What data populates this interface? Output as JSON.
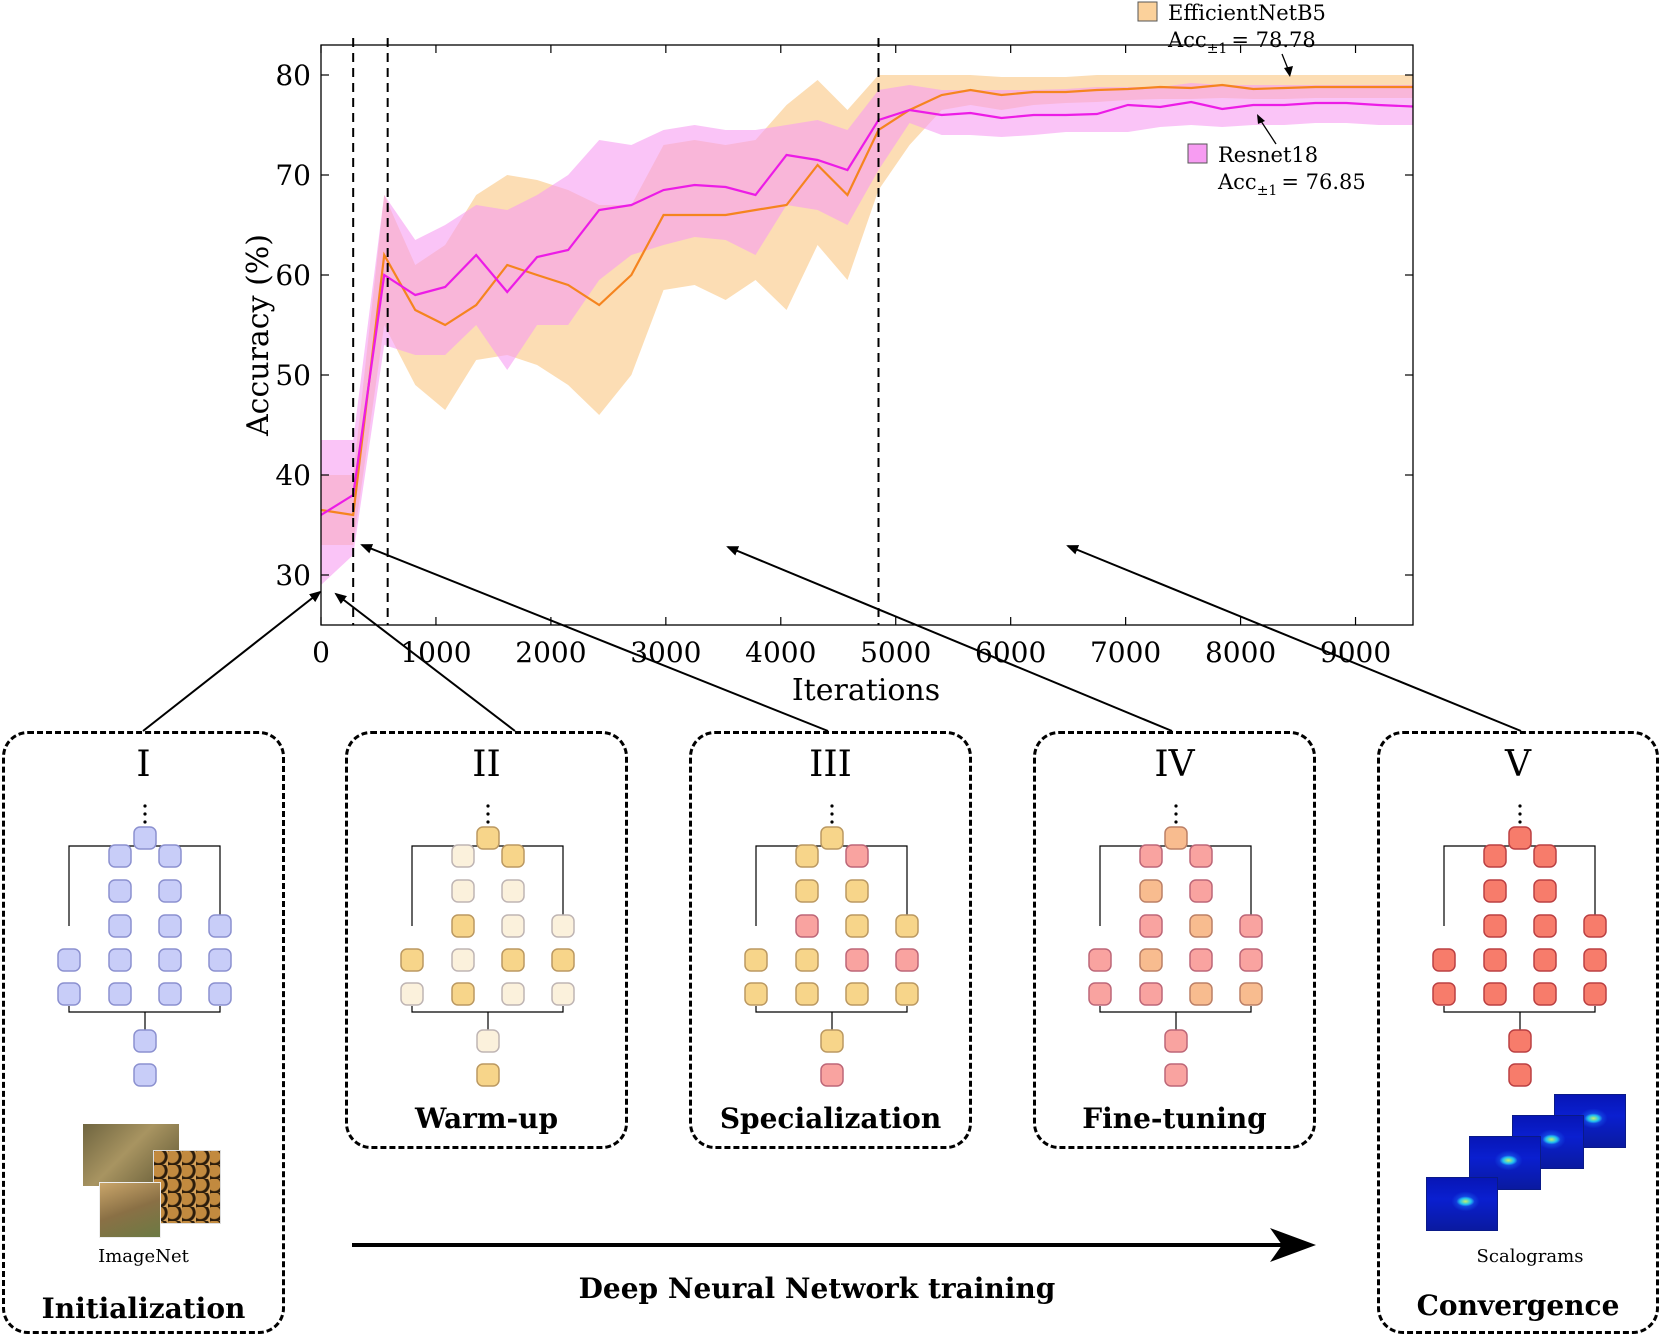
{
  "chart_data": {
    "type": "line",
    "xlabel": "Iterations",
    "ylabel": "Accuracy (%)",
    "xlim": [
      0,
      9500
    ],
    "ylim": [
      25,
      83
    ],
    "xticks": [
      0,
      1000,
      2000,
      3000,
      4000,
      5000,
      6000,
      7000,
      8000,
      9000
    ],
    "yticks": [
      30,
      40,
      50,
      60,
      70,
      80
    ],
    "phase_lines": [
      280,
      580,
      4850
    ],
    "series": [
      {
        "name": "EfficientNetB5",
        "color": "#f5841f",
        "band_color": "#fbd19b",
        "x": [
          0,
          280,
          550,
          820,
          1080,
          1350,
          1620,
          1880,
          2150,
          2420,
          2700,
          2980,
          3250,
          3520,
          3780,
          4050,
          4320,
          4580,
          4850,
          5120,
          5400,
          5650,
          5920,
          6200,
          6480,
          6750,
          7020,
          7300,
          7570,
          7840,
          8110,
          8380,
          8650,
          8920,
          9200,
          9500
        ],
        "mean": [
          36.5,
          36,
          62,
          56.5,
          55,
          57,
          61,
          60,
          59,
          57,
          60,
          66,
          66,
          66,
          66.5,
          67,
          71,
          68,
          74.5,
          76.5,
          78,
          78.5,
          78,
          78.3,
          78.3,
          78.5,
          78.6,
          78.8,
          78.7,
          79,
          78.6,
          78.7,
          78.8,
          78.8,
          78.8,
          78.8
        ],
        "upper": [
          40,
          40,
          68,
          61,
          63,
          68,
          70,
          69.5,
          68.5,
          67,
          67,
          73,
          73.5,
          73,
          73.5,
          77,
          79.5,
          76.5,
          80,
          80,
          80,
          80,
          79.8,
          79.8,
          79.8,
          80,
          80,
          80,
          80,
          80,
          80,
          80,
          80,
          80,
          80,
          80
        ],
        "lower": [
          33,
          33,
          55,
          49,
          46.5,
          51.5,
          52,
          51,
          49,
          46,
          50,
          58.5,
          59,
          57.5,
          59.5,
          56.5,
          63,
          59.5,
          68.5,
          73,
          76.5,
          77,
          76.5,
          77,
          77.2,
          77.3,
          77.5,
          77.6,
          77.6,
          77.7,
          77.6,
          77.6,
          77.7,
          77.7,
          77.7,
          77.7
        ]
      },
      {
        "name": "Resnet18",
        "color": "#ec1ce6",
        "band_color": "#f79cf2",
        "x": [
          0,
          280,
          550,
          820,
          1080,
          1350,
          1620,
          1880,
          2150,
          2420,
          2700,
          2980,
          3250,
          3520,
          3780,
          4050,
          4320,
          4580,
          4850,
          5120,
          5400,
          5650,
          5920,
          6200,
          6480,
          6750,
          7020,
          7300,
          7570,
          7840,
          8110,
          8380,
          8650,
          8920,
          9200,
          9500
        ],
        "mean": [
          36,
          38,
          60,
          58,
          58.8,
          62,
          58.3,
          61.8,
          62.5,
          66.5,
          67,
          68.5,
          69,
          68.8,
          68,
          72,
          71.5,
          70.5,
          75.5,
          76.5,
          76,
          76.2,
          75.7,
          76,
          76,
          76.1,
          77,
          76.8,
          77.3,
          76.6,
          77,
          77,
          77.2,
          77.2,
          77,
          76.85
        ],
        "upper": [
          43.5,
          43.5,
          68,
          63.5,
          65,
          67,
          66.5,
          68,
          70,
          73.5,
          73,
          74.5,
          75,
          74.5,
          74.5,
          75,
          75.5,
          74.5,
          78.5,
          79,
          78.5,
          78.5,
          78.5,
          78.5,
          78.6,
          78.8,
          78.8,
          78.8,
          79.2,
          79,
          79,
          79,
          79,
          79,
          79,
          79
        ],
        "lower": [
          29,
          32,
          53,
          52,
          52,
          55,
          50.5,
          55,
          55,
          59.5,
          62,
          63,
          63.8,
          63.5,
          62,
          67,
          66.5,
          65,
          70.5,
          75.2,
          74,
          74,
          73.8,
          74,
          74.3,
          74.3,
          74.3,
          74.8,
          75,
          74.8,
          75,
          75,
          75.2,
          75.2,
          75,
          75
        ]
      }
    ],
    "annotations": [
      {
        "series": "EfficientNetB5",
        "label": "EfficientNetB5",
        "acc_prefix": "Acc",
        "acc_sub": "±1",
        "acc_value": "= 78.78"
      },
      {
        "series": "Resnet18",
        "label": "Resnet18",
        "acc_prefix": "Acc",
        "acc_sub": "±1",
        "acc_value": "= 76.85"
      }
    ]
  },
  "stages": [
    {
      "numeral": "I",
      "name": "Initialization"
    },
    {
      "numeral": "II",
      "name": "Warm-up"
    },
    {
      "numeral": "III",
      "name": "Specialization"
    },
    {
      "numeral": "IV",
      "name": "Fine-tuning"
    },
    {
      "numeral": "V",
      "name": "Convergence"
    }
  ],
  "captions": {
    "imagenet": "ImageNet",
    "scalograms": "Scalograms"
  },
  "training_label": "Deep Neural Network training",
  "network_colors": {
    "I": {
      "top": "#c8cdf8",
      "col1": [
        "#c8cdf8",
        "#c8cdf8"
      ],
      "col2": [
        "#c8cdf8",
        "#c8cdf8",
        "#c8cdf8",
        "#c8cdf8",
        "#c8cdf8"
      ],
      "col3": [
        "#c8cdf8",
        "#c8cdf8",
        "#c8cdf8",
        "#c8cdf8",
        "#c8cdf8"
      ],
      "col4": [
        "#c8cdf8",
        "#c8cdf8",
        "#c8cdf8"
      ],
      "bottom": [
        "#c8cdf8",
        "#c8cdf8"
      ]
    },
    "II": {
      "top": "#f7d58a",
      "col1": [
        "#f7d58a",
        "#fbf1dc"
      ],
      "col2": [
        "#fbf1dc",
        "#fbf1dc",
        "#f7d58a",
        "#fbf1dc",
        "#f7d58a"
      ],
      "col3": [
        "#f7d58a",
        "#fbf1dc",
        "#fbf1dc",
        "#f7d58a",
        "#fbf1dc"
      ],
      "col4": [
        "#fbf1dc",
        "#f7d58a",
        "#fbf1dc"
      ],
      "bottom": [
        "#fbf1dc",
        "#f7d58a"
      ]
    },
    "III": {
      "top": "#f7d58a",
      "col1": [
        "#f7d58a",
        "#f7d58a"
      ],
      "col2": [
        "#f7d58a",
        "#f7d58a",
        "#f9a3a0",
        "#f7d58a",
        "#f7d58a"
      ],
      "col3": [
        "#f9a3a0",
        "#f7d58a",
        "#f7d58a",
        "#f9a3a0",
        "#f7d58a"
      ],
      "col4": [
        "#f7d58a",
        "#f9a3a0",
        "#f7d58a"
      ],
      "bottom": [
        "#f7d58a",
        "#f9a3a0"
      ]
    },
    "IV": {
      "top": "#f8bc8f",
      "col1": [
        "#f9a3a0",
        "#f9a3a0"
      ],
      "col2": [
        "#f9a3a0",
        "#f8bc8f",
        "#f9a3a0",
        "#f8bc8f",
        "#f9a3a0"
      ],
      "col3": [
        "#f9a3a0",
        "#f9a3a0",
        "#f8bc8f",
        "#f9a3a0",
        "#f8bc8f"
      ],
      "col4": [
        "#f9a3a0",
        "#f9a3a0",
        "#f8bc8f"
      ],
      "bottom": [
        "#f9a3a0",
        "#f9a3a0"
      ]
    },
    "V": {
      "top": "#f77c6b",
      "col1": [
        "#f77c6b",
        "#f77c6b"
      ],
      "col2": [
        "#f77c6b",
        "#f77c6b",
        "#f77c6b",
        "#f77c6b",
        "#f77c6b"
      ],
      "col3": [
        "#f77c6b",
        "#f77c6b",
        "#f77c6b",
        "#f77c6b",
        "#f77c6b"
      ],
      "col4": [
        "#f77c6b",
        "#f77c6b",
        "#f77c6b"
      ],
      "bottom": [
        "#f77c6b",
        "#f77c6b"
      ]
    }
  }
}
